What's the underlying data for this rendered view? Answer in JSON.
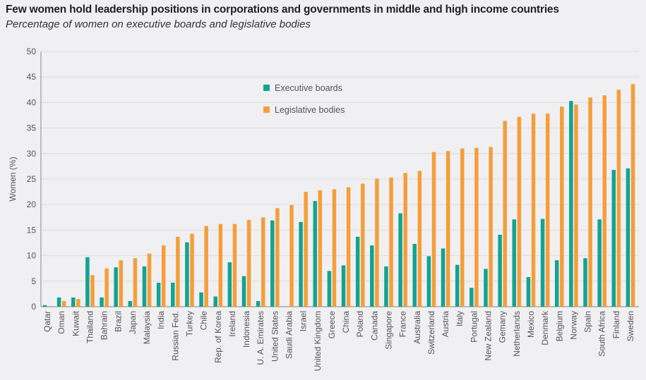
{
  "chart_data": {
    "type": "bar",
    "title": "Few women hold leadership positions in corporations and governments in middle and high income countries",
    "subtitle": "Percentage of women on executive boards and legislative bodies",
    "xlabel": "",
    "ylabel": "Women (%)",
    "ylim": [
      0,
      50
    ],
    "yticks": [
      0,
      5,
      10,
      15,
      20,
      25,
      30,
      35,
      40,
      45,
      50
    ],
    "grid": true,
    "legend_position": "top-center",
    "categories": [
      "Qatar",
      "Oman",
      "Kuwait",
      "Thailand",
      "Bahrain",
      "Brazil",
      "Japan",
      "Malaysia",
      "India",
      "Russian Fed.",
      "Turkey",
      "Chile",
      "Rep. of Korea",
      "Ireland",
      "Indonesia",
      "U. A. Emirates",
      "United States",
      "Saudi Arabia",
      "Israel",
      "United Kingdom",
      "Greece",
      "China",
      "Poland",
      "Canada",
      "Singapore",
      "France",
      "Australia",
      "Switzerland",
      "Austria",
      "Italy",
      "Portugal",
      "New Zealand",
      "Gemany",
      "Netherlands",
      "Mexico",
      "Denmark",
      "Belgium",
      "Norway",
      "Spain",
      "South Africa",
      "Finland",
      "Sweden"
    ],
    "series": [
      {
        "name": "Executive boards",
        "color": "#12a393",
        "values": [
          0.3,
          1.8,
          1.8,
          9.7,
          1.8,
          7.7,
          1.1,
          7.9,
          4.7,
          4.7,
          12.6,
          2.8,
          2.0,
          8.7,
          6.0,
          1.1,
          16.9,
          0,
          16.6,
          20.7,
          7.0,
          8.1,
          13.7,
          12.0,
          7.9,
          18.3,
          12.3,
          9.9,
          11.4,
          8.2,
          3.7,
          7.4,
          14.1,
          17.1,
          5.8,
          17.2,
          9.1,
          40.3,
          9.5,
          17.1,
          26.8,
          27.1
        ]
      },
      {
        "name": "Legislative bodies",
        "color": "#f59e3a",
        "values": [
          0,
          1.1,
          1.5,
          6.2,
          7.5,
          9.1,
          9.5,
          10.4,
          12.0,
          13.7,
          14.3,
          15.8,
          16.2,
          16.2,
          17.0,
          17.5,
          19.3,
          19.9,
          22.5,
          22.8,
          23.0,
          23.4,
          24.1,
          25.1,
          25.3,
          26.2,
          26.6,
          30.3,
          30.5,
          31.0,
          31.1,
          31.3,
          36.4,
          37.2,
          37.8,
          37.8,
          39.2,
          39.6,
          41.0,
          41.4,
          42.5,
          43.6
        ]
      }
    ]
  }
}
